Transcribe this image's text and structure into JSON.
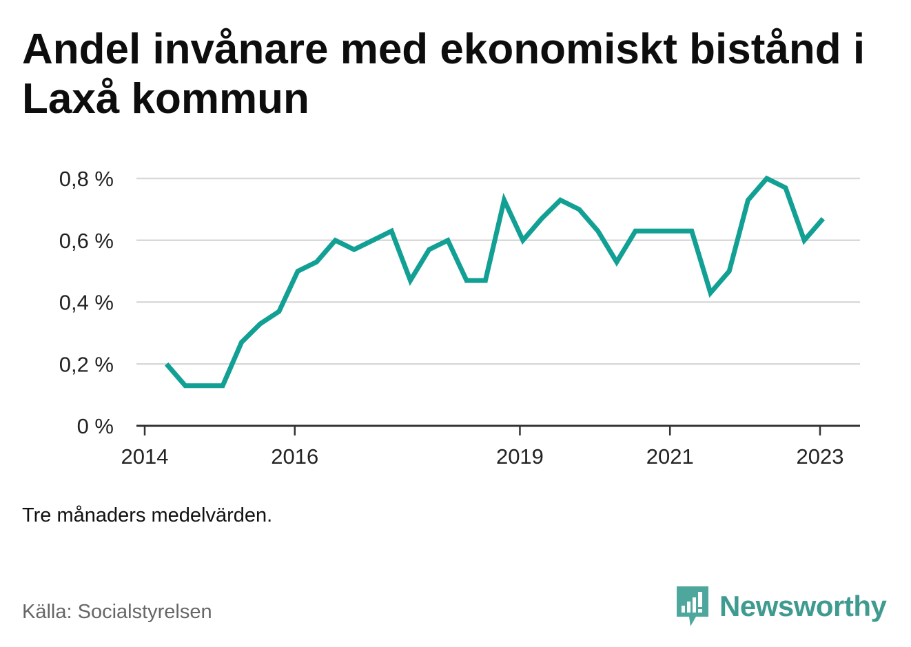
{
  "title": "Andel invånare med ekonomiskt bistånd i Laxå kommun",
  "note": "Tre månaders medelvärden.",
  "source": "Källa: Socialstyrelsen",
  "brand": {
    "name": "Newsworthy",
    "icon": "newsworthy-logo-icon",
    "color": "#3f9a8f"
  },
  "colors": {
    "line": "#12a094",
    "grid": "#d9d9d9",
    "axis": "#333333"
  },
  "chart_data": {
    "type": "line",
    "title": "Andel invånare med ekonomiskt bistånd i Laxå kommun",
    "xlabel": "",
    "ylabel": "",
    "ylim": [
      0,
      0.8
    ],
    "yticks": [
      0,
      0.2,
      0.4,
      0.6,
      0.8
    ],
    "ytick_labels": [
      "0 %",
      "0,2 %",
      "0,4 %",
      "0,6 %",
      "0,8 %"
    ],
    "xticks": [
      2014,
      2016,
      2019,
      2021,
      2023
    ],
    "xtick_labels": [
      "2014",
      "2016",
      "2019",
      "2021",
      "2023"
    ],
    "xlim": [
      2014,
      2024
    ],
    "grid": true,
    "legend": "none",
    "series": [
      {
        "x": [
          2014.29,
          2014.54,
          2014.79,
          2015.04,
          2015.29,
          2015.54,
          2015.79,
          2016.04,
          2016.29,
          2016.54,
          2016.79,
          2017.04,
          2017.29,
          2017.54,
          2017.79,
          2018.04,
          2018.29,
          2018.54,
          2018.79,
          2019.04,
          2019.29,
          2019.54,
          2019.79,
          2020.04,
          2020.29,
          2020.54,
          2020.79,
          2021.04,
          2021.29,
          2021.54,
          2021.79,
          2022.04,
          2022.29,
          2022.54,
          2022.79,
          2023.04
        ],
        "values": [
          0.2,
          0.13,
          0.13,
          0.13,
          0.27,
          0.33,
          0.37,
          0.5,
          0.53,
          0.6,
          0.57,
          0.6,
          0.63,
          0.47,
          0.57,
          0.6,
          0.47,
          0.47,
          0.73,
          0.6,
          0.67,
          0.73,
          0.7,
          0.63,
          0.53,
          0.63,
          0.63,
          0.63,
          0.63,
          0.43,
          0.5,
          0.73,
          0.8,
          0.77,
          0.6,
          0.67
        ]
      }
    ]
  }
}
